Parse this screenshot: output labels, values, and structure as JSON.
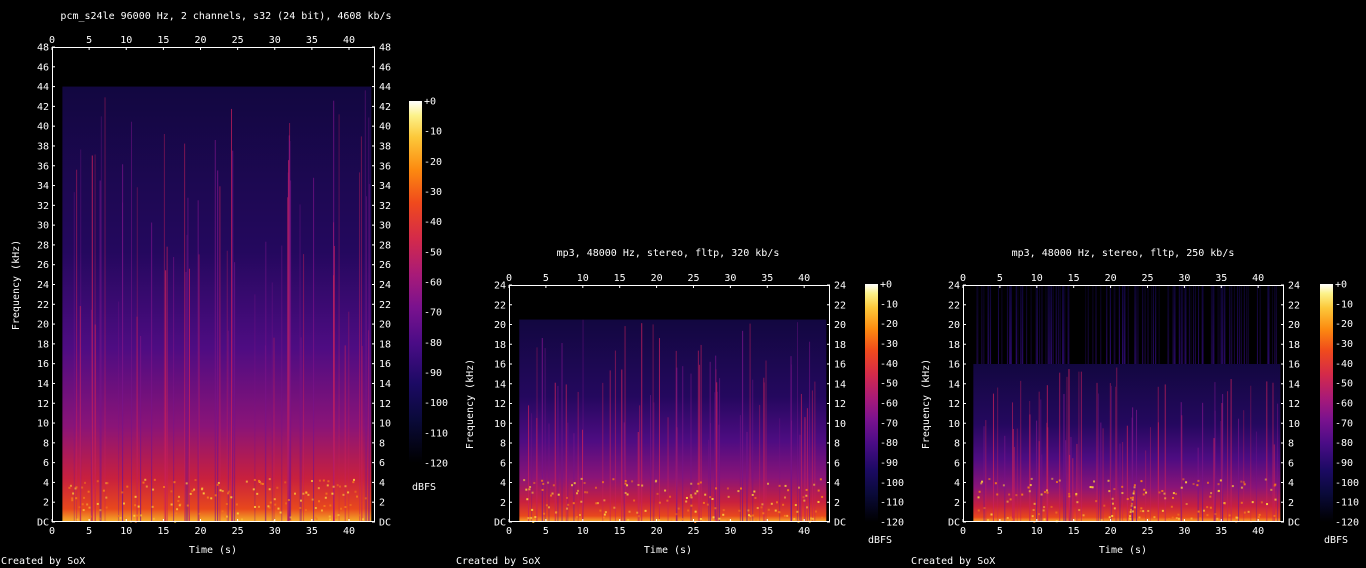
{
  "chart_data": [
    {
      "type": "heatmap",
      "title": "pcm_s24le 96000 Hz, 2 channels, s32 (24 bit), 4608 kb/s",
      "xlabel": "Time (s)",
      "ylabel": "Frequency (kHz)",
      "xlim": [
        0,
        43.5
      ],
      "x_ticks": [
        0,
        5,
        10,
        15,
        20,
        25,
        30,
        35,
        40
      ],
      "ylim": [
        0,
        48
      ],
      "y_ticks": [
        "DC",
        "2",
        "4",
        "6",
        "8",
        "10",
        "12",
        "14",
        "16",
        "18",
        "20",
        "22",
        "24",
        "26",
        "28",
        "30",
        "32",
        "34",
        "36",
        "38",
        "40",
        "42",
        "44",
        "46",
        "48"
      ],
      "spectral_cutoff_khz": 44,
      "colorbar": {
        "label": "dBFS",
        "ticks": [
          "+0",
          "-10",
          "-20",
          "-30",
          "-40",
          "-50",
          "-60",
          "-70",
          "-80",
          "-90",
          "-100",
          "-110",
          "-120"
        ],
        "range": [
          -120,
          0
        ]
      },
      "footer": "Created by SoX"
    },
    {
      "type": "heatmap",
      "title": "mp3, 48000 Hz, stereo, fltp, 320 kb/s",
      "xlabel": "Time (s)",
      "ylabel": "Frequency (kHz)",
      "xlim": [
        0,
        43.5
      ],
      "x_ticks": [
        0,
        5,
        10,
        15,
        20,
        25,
        30,
        35,
        40
      ],
      "ylim": [
        0,
        24
      ],
      "y_ticks": [
        "DC",
        "2",
        "4",
        "6",
        "8",
        "10",
        "12",
        "14",
        "16",
        "18",
        "20",
        "22",
        "24"
      ],
      "spectral_cutoff_khz": 20.5,
      "colorbar": {
        "label": "dBFS",
        "ticks": [
          "+0",
          "-10",
          "-20",
          "-30",
          "-40",
          "-50",
          "-60",
          "-70",
          "-80",
          "-90",
          "-100",
          "-110",
          "-120"
        ],
        "range": [
          -120,
          0
        ]
      },
      "footer": "Created by SoX"
    },
    {
      "type": "heatmap",
      "title": "mp3, 48000 Hz, stereo, fltp, 250 kb/s",
      "xlabel": "Time (s)",
      "ylabel": "Frequency (kHz)",
      "xlim": [
        0,
        43.5
      ],
      "x_ticks": [
        0,
        5,
        10,
        15,
        20,
        25,
        30,
        35,
        40
      ],
      "ylim": [
        0,
        24
      ],
      "y_ticks": [
        "DC",
        "2",
        "4",
        "6",
        "8",
        "10",
        "12",
        "14",
        "16",
        "18",
        "20",
        "22",
        "24"
      ],
      "spectral_cutoff_khz": 16,
      "colorbar": {
        "label": "dBFS",
        "ticks": [
          "+0",
          "-10",
          "-20",
          "-30",
          "-40",
          "-50",
          "-60",
          "-70",
          "-80",
          "-90",
          "-100",
          "-110",
          "-120"
        ],
        "range": [
          -120,
          0
        ]
      },
      "footer": "Created by SoX"
    }
  ],
  "colors": {
    "background": "#000000",
    "axis": "#ffffff",
    "colormap": [
      "#000000",
      "#0a0a3a",
      "#1c0a64",
      "#4a0c86",
      "#7a128e",
      "#a81a78",
      "#d42a4a",
      "#f04a1c",
      "#fc8a10",
      "#fcc83a",
      "#fcf28a",
      "#ffffff"
    ]
  }
}
